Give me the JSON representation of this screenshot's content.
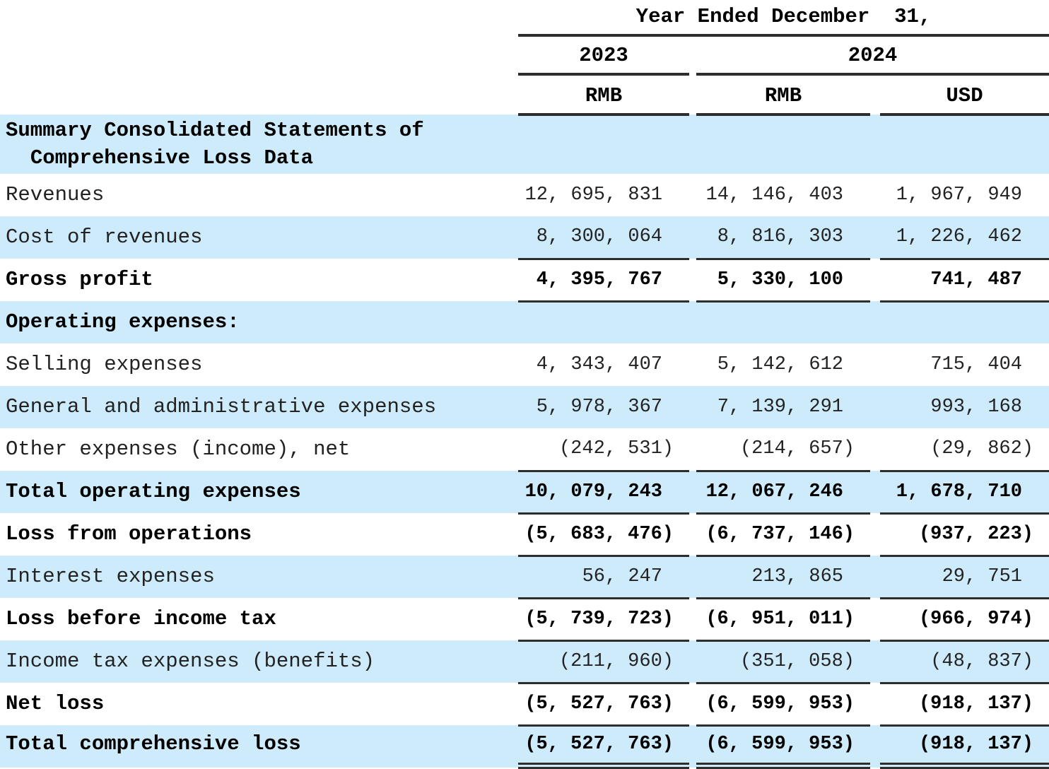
{
  "table_title": "Summary Consolidated Statements of Comprehensive Loss Data",
  "header": {
    "period_title": "Year Ended December  31,",
    "year_left": "2023",
    "year_right": "2024",
    "unit_2023": "RMB",
    "unit_2024_rmb": "RMB",
    "unit_2024_usd": "USD"
  },
  "colors": {
    "row_shade": "#cdebfa",
    "rule": "#2d2d2d",
    "text": "#000000"
  },
  "rows": [
    {
      "label": "Summary Consolidated Statements of\n  Comprehensive Loss Data",
      "bold": true,
      "shade": true,
      "rule": "none",
      "values": [
        "",
        "",
        ""
      ]
    },
    {
      "label": "Revenues",
      "bold": false,
      "shade": false,
      "rule": "none",
      "values": [
        "12, 695, 831",
        "14, 146, 403",
        "1, 967, 949"
      ]
    },
    {
      "label": "Cost of revenues",
      "bold": false,
      "shade": true,
      "rule": "single",
      "values": [
        "8, 300, 064",
        "8, 816, 303",
        "1, 226, 462"
      ]
    },
    {
      "label": "Gross profit",
      "bold": true,
      "shade": false,
      "rule": "single",
      "values": [
        "4, 395, 767",
        "5, 330, 100",
        "741, 487"
      ]
    },
    {
      "label": "Operating expenses:",
      "bold": true,
      "shade": true,
      "rule": "none",
      "values": [
        "",
        "",
        ""
      ]
    },
    {
      "label": "Selling expenses",
      "bold": false,
      "shade": false,
      "rule": "none",
      "values": [
        "4, 343, 407",
        "5, 142, 612",
        "715, 404"
      ]
    },
    {
      "label": "General and administrative expenses",
      "bold": false,
      "shade": true,
      "rule": "none",
      "values": [
        "5, 978, 367",
        "7, 139, 291",
        "993, 168"
      ]
    },
    {
      "label": "Other expenses (income), net",
      "bold": false,
      "shade": false,
      "rule": "single",
      "values": [
        "(242, 531)",
        "(214, 657)",
        "(29, 862)"
      ]
    },
    {
      "label": "Total operating expenses",
      "bold": true,
      "shade": true,
      "rule": "single",
      "values": [
        "10, 079, 243",
        "12, 067, 246",
        "1, 678, 710"
      ]
    },
    {
      "label": "Loss from operations",
      "bold": true,
      "shade": false,
      "rule": "single",
      "values": [
        "(5, 683, 476)",
        "(6, 737, 146)",
        "(937, 223)"
      ]
    },
    {
      "label": "Interest expenses",
      "bold": false,
      "shade": true,
      "rule": "single",
      "values": [
        "56, 247",
        "213, 865",
        "29, 751"
      ]
    },
    {
      "label": "Loss before income tax",
      "bold": true,
      "shade": false,
      "rule": "single",
      "values": [
        "(5, 739, 723)",
        "(6, 951, 011)",
        "(966, 974)"
      ]
    },
    {
      "label": "Income tax expenses (benefits)",
      "bold": false,
      "shade": true,
      "rule": "single",
      "values": [
        "(211, 960)",
        "(351, 058)",
        "(48, 837)"
      ]
    },
    {
      "label": "Net loss",
      "bold": true,
      "shade": false,
      "rule": "single",
      "values": [
        "(5, 527, 763)",
        "(6, 599, 953)",
        "(918, 137)"
      ]
    },
    {
      "label": "Total comprehensive loss",
      "bold": true,
      "shade": true,
      "rule": "double",
      "values": [
        "(5, 527, 763)",
        "(6, 599, 953)",
        "(918, 137)"
      ]
    }
  ]
}
